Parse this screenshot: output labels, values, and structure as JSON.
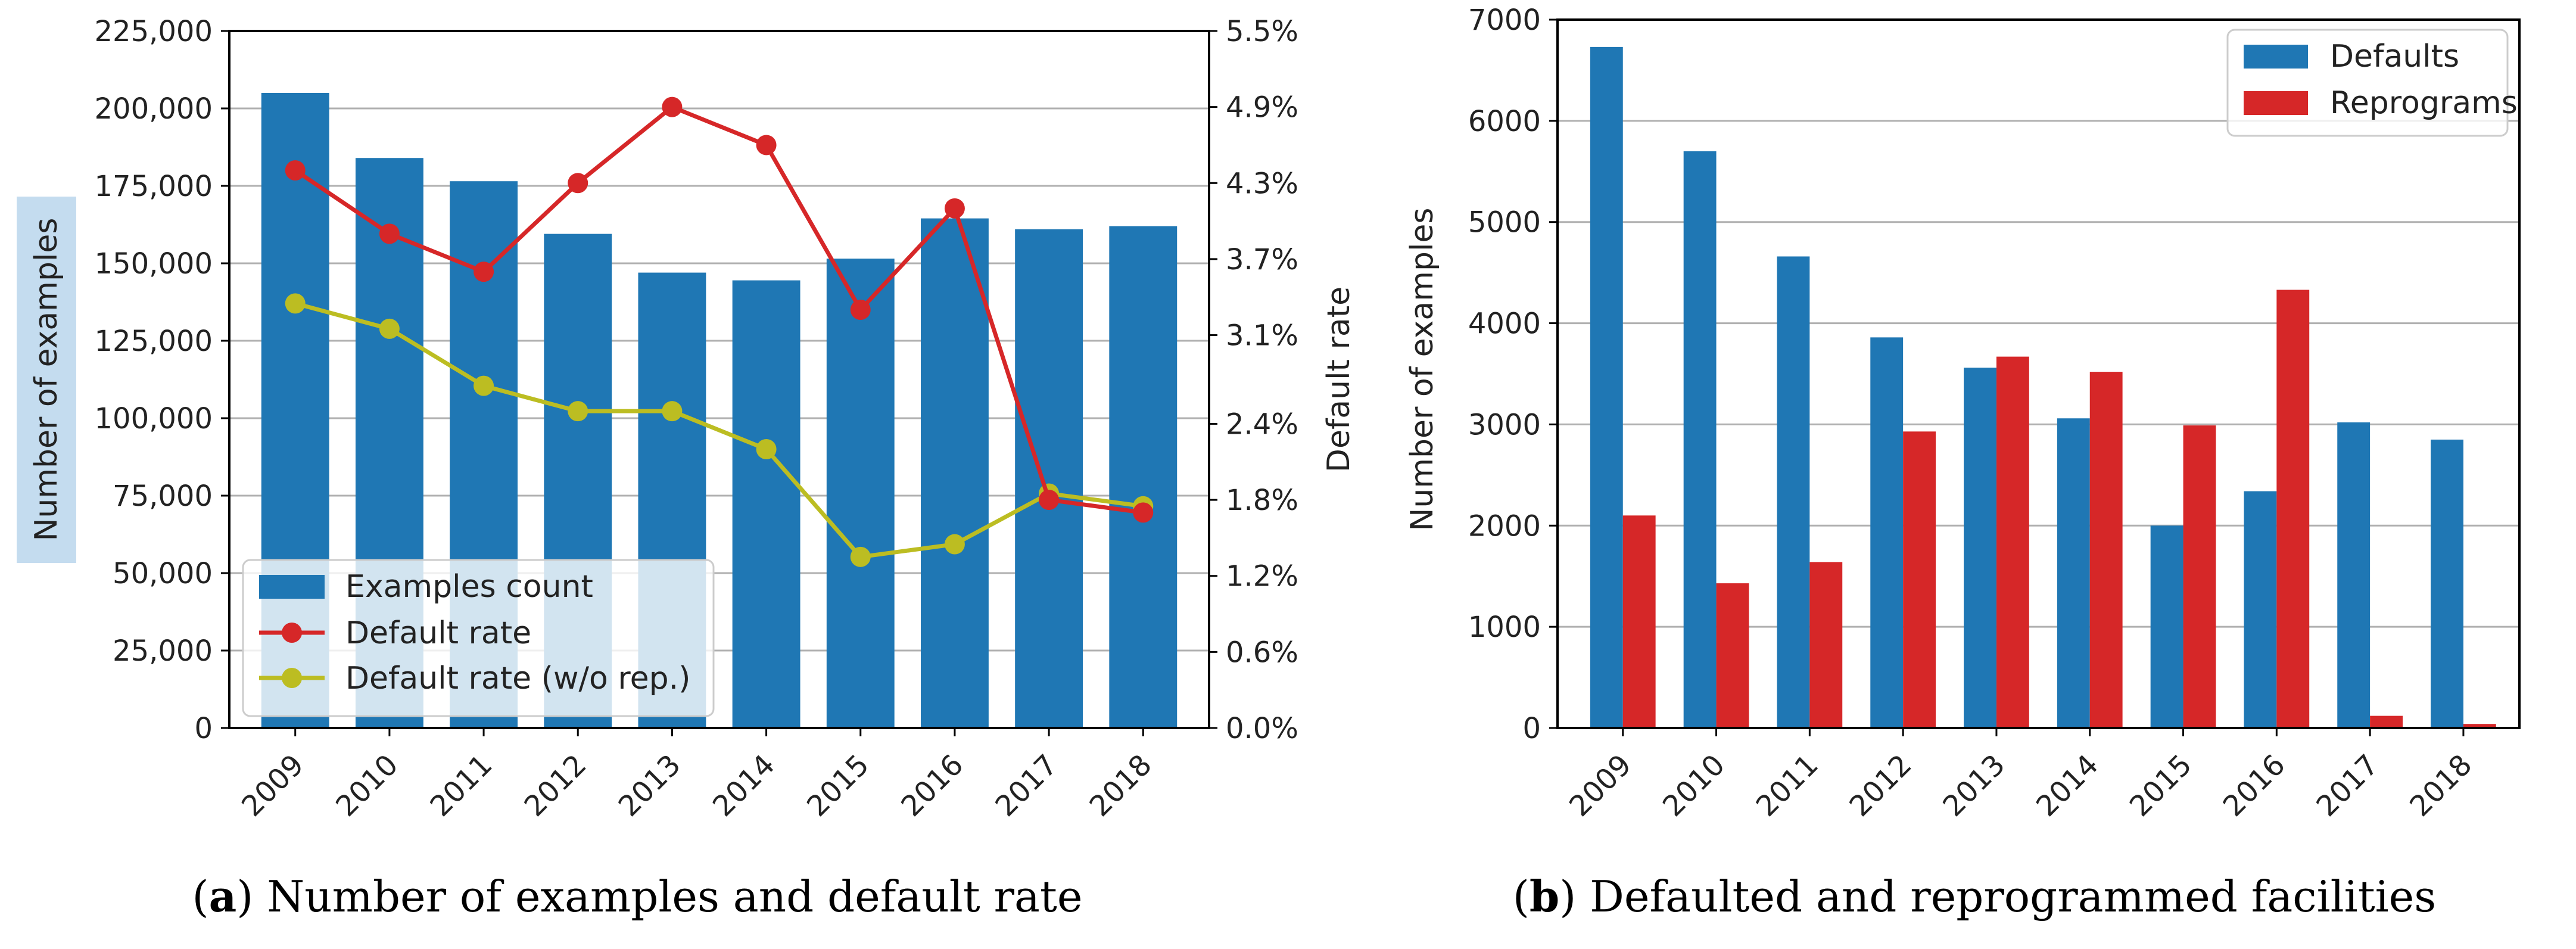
{
  "chart_data": [
    {
      "type": "bar",
      "id": "a",
      "categories": [
        "2009",
        "2010",
        "2011",
        "2012",
        "2013",
        "2014",
        "2015",
        "2016",
        "2017",
        "2018"
      ],
      "series": [
        {
          "name": "Examples count",
          "axis": "left",
          "kind": "bar",
          "color": "#1f77b4",
          "values": [
            205000,
            184000,
            176500,
            159500,
            147000,
            144500,
            151500,
            164500,
            161000,
            162000
          ]
        },
        {
          "name": "Default rate",
          "axis": "right",
          "kind": "line",
          "color": "#d62728",
          "values": [
            4.4,
            3.9,
            3.6,
            4.3,
            4.9,
            4.6,
            3.3,
            4.1,
            1.8,
            1.7
          ]
        },
        {
          "name": "Default rate (w/o rep.)",
          "axis": "right",
          "kind": "line",
          "color": "#bcbd22",
          "values": [
            3.35,
            3.15,
            2.7,
            2.5,
            2.5,
            2.2,
            1.35,
            1.45,
            1.85,
            1.75
          ]
        }
      ],
      "ylim": [
        0,
        225000
      ],
      "yticks": [
        0,
        25000,
        50000,
        75000,
        100000,
        125000,
        150000,
        175000,
        200000,
        225000
      ],
      "ytick_labels": [
        "0",
        "25,000",
        "50,000",
        "75,000",
        "100,000",
        "125,000",
        "150,000",
        "175,000",
        "200,000",
        "225,000"
      ],
      "y2lim": [
        0,
        5.5
      ],
      "y2ticks": [
        0,
        0.6,
        1.2,
        1.8,
        2.4,
        3.1,
        3.7,
        4.3,
        4.9,
        5.5
      ],
      "y2tick_labels": [
        "0.0%",
        "0.6%",
        "1.2%",
        "1.8%",
        "2.4%",
        "3.1%",
        "3.7%",
        "4.3%",
        "4.9%",
        "5.5%"
      ],
      "xlabel": "",
      "ylabel": "Number of examples",
      "y2label": "Default rate",
      "legend": "lower-left",
      "grid": true,
      "caption_letter": "a",
      "caption_text": "Number of examples and default rate"
    },
    {
      "type": "bar",
      "id": "b",
      "categories": [
        "2009",
        "2010",
        "2011",
        "2012",
        "2013",
        "2014",
        "2015",
        "2016",
        "2017",
        "2018"
      ],
      "series": [
        {
          "name": "Defaults",
          "color": "#1f77b4",
          "values": [
            6730,
            5700,
            4660,
            3860,
            3560,
            3060,
            2000,
            2340,
            3020,
            2850
          ]
        },
        {
          "name": "Reprograms",
          "color": "#d62728",
          "values": [
            2100,
            1430,
            1640,
            2930,
            3670,
            3520,
            2990,
            4330,
            120,
            40
          ]
        }
      ],
      "ylim": [
        0,
        7000
      ],
      "yticks": [
        0,
        1000,
        2000,
        3000,
        4000,
        5000,
        6000,
        7000
      ],
      "ytick_labels": [
        "0",
        "1000",
        "2000",
        "3000",
        "4000",
        "5000",
        "6000",
        "7000"
      ],
      "xlabel": "",
      "ylabel": "Number of examples",
      "legend": "top-right",
      "grid": true,
      "caption_letter": "b",
      "caption_text": "Defaulted and reprogrammed facilities"
    }
  ]
}
